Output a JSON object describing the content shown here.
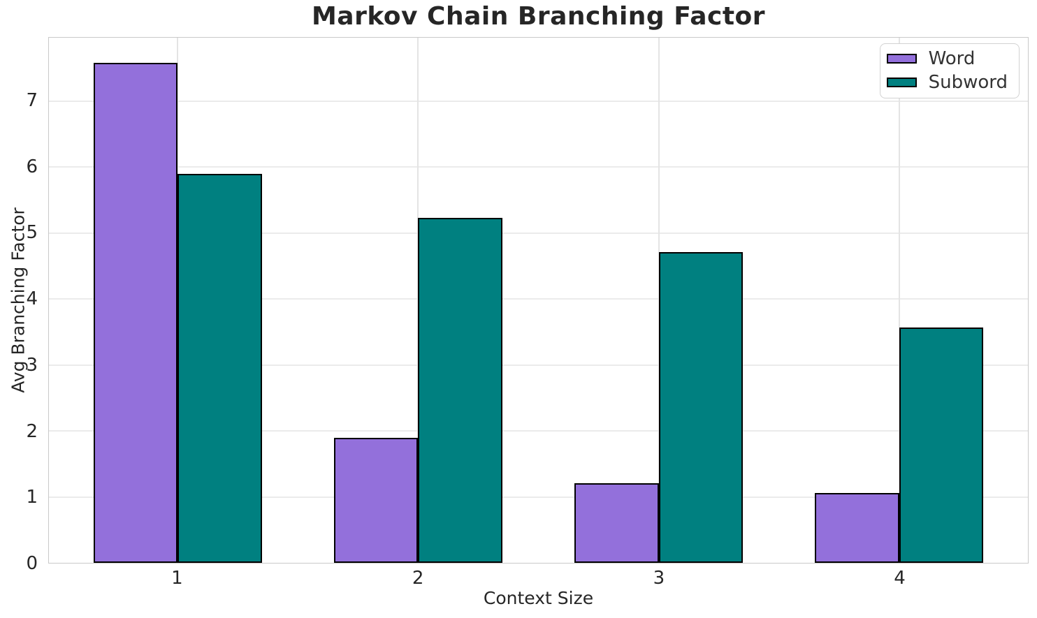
{
  "chart_data": {
    "type": "bar",
    "title": "Markov Chain Branching Factor",
    "xlabel": "Context Size",
    "ylabel": "Avg Branching Factor",
    "categories": [
      "1",
      "2",
      "3",
      "4"
    ],
    "series": [
      {
        "name": "Word",
        "color": "#9370DB",
        "values": [
          7.58,
          1.89,
          1.21,
          1.06
        ]
      },
      {
        "name": "Subword",
        "color": "#008080",
        "values": [
          5.9,
          5.23,
          4.71,
          3.57
        ]
      }
    ],
    "yticks": [
      0,
      1,
      2,
      3,
      4,
      5,
      6,
      7
    ],
    "ylim": [
      0,
      7.96
    ],
    "xlim": [
      -0.535,
      3.535
    ],
    "bar_width": 0.35,
    "grid": true,
    "legend_position": "upper right"
  },
  "colors": {
    "word_fill": "#9370DB",
    "subword_fill": "#008080",
    "bar_edge": "#000000",
    "grid_line": "#ebebeb",
    "axes_frame": "#c9c9c9",
    "text": "#262626",
    "background": "#ffffff",
    "legend_border": "#d2d2d2"
  }
}
